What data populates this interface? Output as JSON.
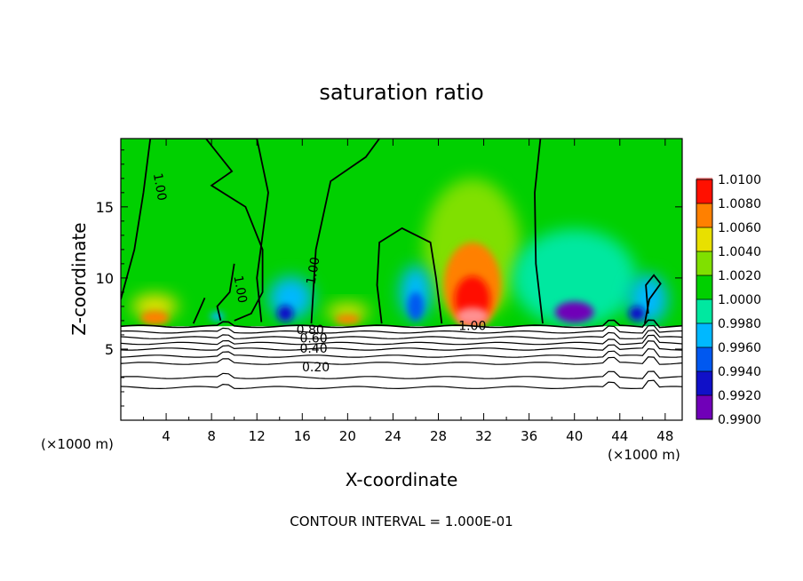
{
  "chart_data": {
    "type": "heatmap",
    "title": "saturation ratio",
    "xlabel": "X-coordinate",
    "ylabel": "Z-coordinate",
    "x_unit_label": "(×1000 m)",
    "footer": "CONTOUR INTERVAL = 1.000E-01",
    "xlim": [
      0,
      49.5
    ],
    "ylim": [
      0,
      19.8
    ],
    "x_ticks": [
      "4",
      "8",
      "12",
      "16",
      "20",
      "24",
      "28",
      "32",
      "36",
      "40",
      "44",
      "48"
    ],
    "y_ticks": [
      "5",
      "10",
      "15"
    ],
    "colorbar": {
      "levels": [
        "0.9900",
        "0.9920",
        "0.9940",
        "0.9960",
        "0.9980",
        "1.0000",
        "1.0020",
        "1.0040",
        "1.0060",
        "1.0080",
        "1.0100"
      ],
      "colors": [
        "#7000b8",
        "#1010c8",
        "#0058f0",
        "#00b8ff",
        "#00e8a0",
        "#00d000",
        "#80e000",
        "#e8e000",
        "#ff8000",
        "#ff1000",
        "#ff9090"
      ]
    },
    "contour_labels": [
      {
        "text": "1.00",
        "x": 3.4,
        "z": 16.4,
        "angle": 80
      },
      {
        "text": "1.00",
        "x": 10.5,
        "z": 9.2,
        "angle": 80
      },
      {
        "text": "1.00",
        "x": 17.0,
        "z": 10.5,
        "angle": -80
      },
      {
        "text": "1.00",
        "x": 31.0,
        "z": 6.6,
        "angle": 0
      },
      {
        "text": "0.80",
        "x": 16.7,
        "z": 6.3,
        "angle": 0
      },
      {
        "text": "0.60",
        "x": 17.0,
        "z": 5.7,
        "angle": 0
      },
      {
        "text": "0.40",
        "x": 17.0,
        "z": 5.0,
        "angle": 0
      },
      {
        "text": "0.20",
        "x": 17.2,
        "z": 3.7,
        "angle": 0
      }
    ],
    "terrain_contour_z": [
      6.6,
      6.2,
      5.8,
      5.4,
      5.0,
      4.5,
      4.0,
      3.0,
      2.3
    ],
    "features": [
      {
        "x": 3.0,
        "z": 7.3,
        "value": 1.008
      },
      {
        "x": 20.0,
        "z": 7.2,
        "value": 1.006
      },
      {
        "x": 31.0,
        "z": 9.5,
        "value": 1.01
      },
      {
        "x": 26.0,
        "z": 8.5,
        "value": 0.993
      },
      {
        "x": 14.5,
        "z": 7.8,
        "value": 0.993
      },
      {
        "x": 40.0,
        "z": 8.0,
        "value": 0.991
      },
      {
        "x": 46.0,
        "z": 8.0,
        "value": 0.992
      }
    ]
  }
}
